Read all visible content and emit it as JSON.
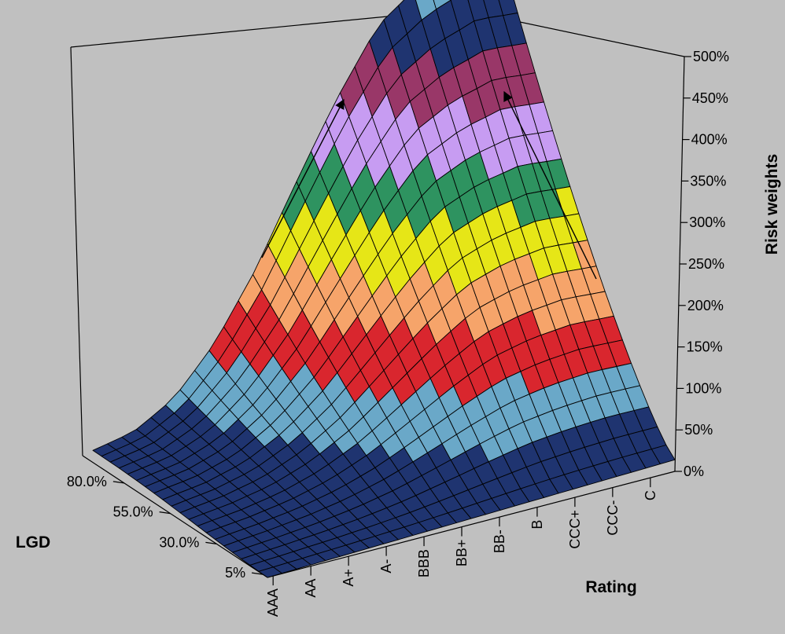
{
  "chart_data": {
    "type": "surface",
    "title": "",
    "zlabel": "Risk weights",
    "xlabel": "Rating",
    "ylabel": "LGD",
    "x_categories": [
      "AAA",
      "AA",
      "A+",
      "A-",
      "BBB",
      "BB+",
      "BB-",
      "B",
      "CCC+",
      "CCC-",
      "C"
    ],
    "y_tick_labels": [
      "5%",
      "30.0%",
      "55.0%",
      "80.0%"
    ],
    "zlim": [
      0,
      500
    ],
    "z_ticks": [
      "0%",
      "50%",
      "100%",
      "150%",
      "200%",
      "250%",
      "300%",
      "350%",
      "400%",
      "450%",
      "500%"
    ],
    "band_colors": [
      "#1f3470",
      "#6aa8c8",
      "#d9262e",
      "#f6a46a",
      "#e6e617",
      "#2e9360",
      "#c79cf2",
      "#993768",
      "#1f3470",
      "#6aa8c8"
    ],
    "ridge": {
      "rating": [
        "AAA",
        "AA",
        "A+",
        "A-",
        "BBB",
        "BB+",
        "BB-",
        "B",
        "CCC+",
        "CCC-",
        "C"
      ],
      "lgd_80_risk_weight": [
        15,
        30,
        60,
        110,
        180,
        270,
        360,
        440,
        480,
        500,
        490
      ]
    },
    "annotation_arrows": 2
  }
}
